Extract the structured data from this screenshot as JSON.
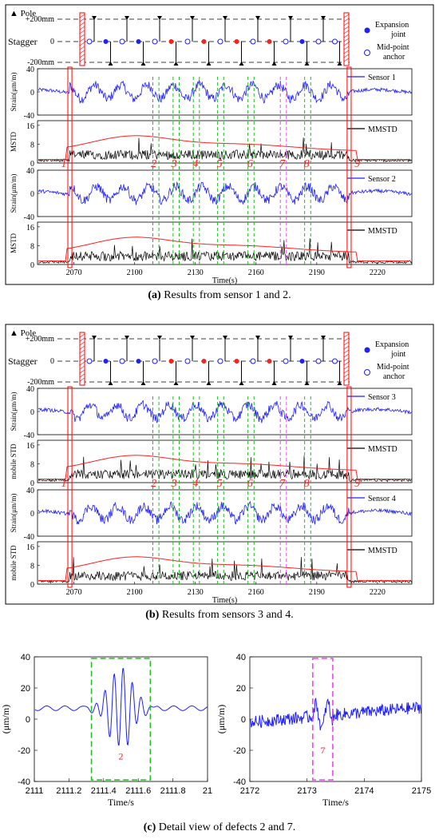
{
  "captions": {
    "a_label": "(a)",
    "a_text": " Results from sensor 1 and 2.",
    "b_label": "(b)",
    "b_text": " Results from sensors 3 and 4.",
    "c_label": "(c)",
    "c_text": " Detail view of defects 2 and 7."
  },
  "legend": {
    "pole": "Pole",
    "expansion": "Expansion joint",
    "midpoint": "Mid-point anchor"
  },
  "stagger": {
    "label": "Stagger",
    "ticks": [
      "+200mm",
      "0",
      "-200mm"
    ]
  },
  "defect_labels": [
    "1",
    "2",
    "3",
    "4",
    "5",
    "6",
    "7",
    "8",
    "9"
  ],
  "colors": {
    "strain": "#1f1fff",
    "mmstd": "#000000",
    "threshold": "#ff1f1f",
    "green_box": "#22bb22",
    "magenta_box": "#ee44ee",
    "red_box": "#ff0000"
  },
  "chart_data": [
    {
      "type": "line",
      "panel": "a",
      "subplots": [
        {
          "ylabel": "Strain(μm/m)",
          "legend": "Sensor 1",
          "yticks": [
            "40",
            "0",
            "-40"
          ],
          "ylim": [
            -40,
            40
          ]
        },
        {
          "ylabel": "MSTD",
          "legend": "MMSTD",
          "yticks": [
            "16",
            "8",
            "0"
          ],
          "ylim": [
            0,
            18
          ]
        },
        {
          "ylabel": "Strain(μm/m)",
          "legend": "Sensor 2",
          "yticks": [
            "40",
            "0",
            "-40"
          ],
          "ylim": [
            -40,
            40
          ]
        },
        {
          "ylabel": "MSTD",
          "legend": "MMSTD",
          "yticks": [
            "16",
            "8",
            "0"
          ],
          "ylim": [
            0,
            18
          ]
        }
      ],
      "xlabel": "Time(s)",
      "xticks": [
        "2070",
        "2100",
        "2130",
        "2160",
        "2190",
        "2220"
      ],
      "xlim": [
        2052,
        2237
      ],
      "red_boxes": [
        [
          2067,
          2069
        ],
        [
          2205,
          2207
        ]
      ],
      "green_boxes": [
        [
          2109,
          2112
        ],
        [
          2119,
          2122
        ],
        [
          2129,
          2132
        ],
        [
          2141,
          2144
        ],
        [
          2156,
          2159
        ],
        [
          2184,
          2187
        ]
      ],
      "magenta_boxes": [
        [
          2172,
          2175
        ]
      ]
    },
    {
      "type": "line",
      "panel": "b",
      "subplots": [
        {
          "ylabel": "Strain(μm/m)",
          "legend": "Sensor 3",
          "yticks": [
            "40",
            "0",
            "-40"
          ],
          "ylim": [
            -40,
            40
          ]
        },
        {
          "ylabel": "mobile STD",
          "legend": "MMSTD",
          "yticks": [
            "16",
            "8",
            "0"
          ],
          "ylim": [
            0,
            18
          ]
        },
        {
          "ylabel": "Strain(μm/m)",
          "legend": "Sensor 4",
          "yticks": [
            "40",
            "0",
            "-40"
          ],
          "ylim": [
            -40,
            40
          ]
        },
        {
          "ylabel": "mobile STD",
          "legend": "MMSTD",
          "yticks": [
            "16",
            "8",
            "0"
          ],
          "ylim": [
            0,
            18
          ]
        }
      ],
      "xlabel": "Time(s)",
      "xticks": [
        "2070",
        "2100",
        "2130",
        "2160",
        "2190",
        "2220"
      ],
      "xlim": [
        2052,
        2237
      ],
      "red_boxes": [
        [
          2067,
          2069
        ],
        [
          2205,
          2207
        ]
      ],
      "green_boxes": [
        [
          2109,
          2112
        ],
        [
          2119,
          2122
        ],
        [
          2129,
          2132
        ],
        [
          2141,
          2144
        ],
        [
          2156,
          2159
        ],
        [
          2184,
          2187
        ]
      ],
      "magenta_boxes": [
        [
          2172,
          2175
        ]
      ]
    },
    {
      "type": "line",
      "panel": "c-left",
      "xlabel": "Time/s",
      "ylabel": "(μm/m)",
      "xticks": [
        "2111",
        "2111.2",
        "2111.4",
        "2111.6",
        "2111.8",
        "21"
      ],
      "yticks": [
        "40",
        "20",
        "0",
        "-20",
        "-40"
      ],
      "xlim": [
        2111,
        2112
      ],
      "ylim": [
        -40,
        40
      ],
      "box": [
        2111.33,
        2111.67
      ],
      "box_label": "2"
    },
    {
      "type": "line",
      "panel": "c-right",
      "xlabel": "Time/s",
      "ylabel": "(μm/m)",
      "xticks": [
        "2172",
        "2173",
        "2174",
        "2175"
      ],
      "yticks": [
        "40",
        "20",
        "0",
        "-20",
        "-40"
      ],
      "xlim": [
        2172,
        2175
      ],
      "ylim": [
        -40,
        40
      ],
      "box": [
        2173.1,
        2173.45
      ],
      "box_label": "7"
    }
  ]
}
